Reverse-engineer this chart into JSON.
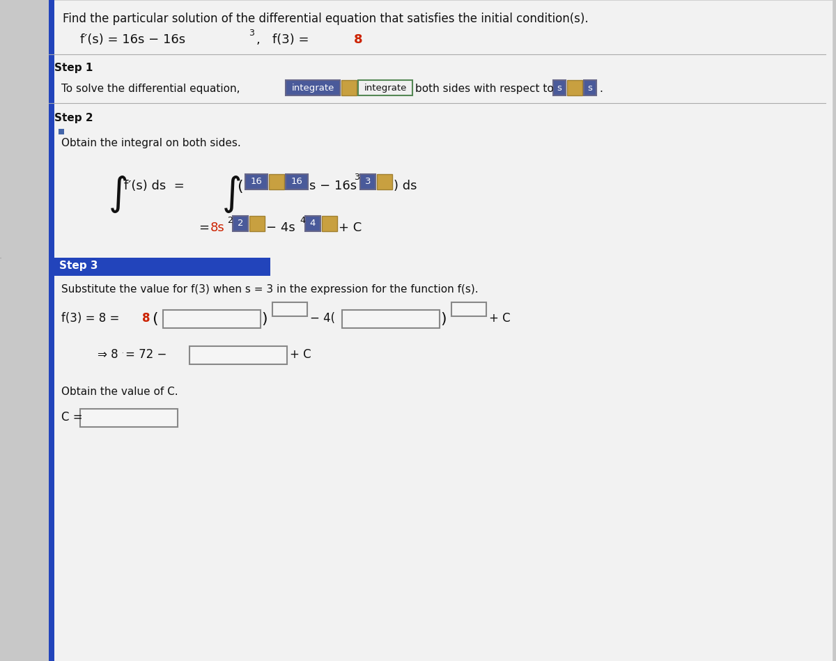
{
  "bg_color": "#c8c8c8",
  "panel_color": "#f0f0f0",
  "title_text": "Find the particular solution of the differential equation that satisfies the initial condition(s).",
  "step1_label": "Step 1",
  "step2_label": "Step 2",
  "step3_label": "Step 3",
  "step1_text": "To solve the differential equation,",
  "step1_after": "both sides with respect to",
  "step2_text": "Obtain the integral on both sides.",
  "step3_text": "Substitute the value for f(3) when s = 3 in the expression for the function f(s).",
  "obtain_text": "Obtain the value of C.",
  "step3_header_bg": "#2244bb",
  "dark_text": "#111111",
  "red_text": "#cc2200",
  "dark_box_color": "#4a5a9a",
  "dark_box_edge": "#666688",
  "green_box_color": "#3a7a3a",
  "green_box_edge": "#558855",
  "img_color": "#c8a040",
  "img_edge": "#a08030",
  "input_box_color": "#f5f5f5",
  "input_box_edge": "#888888",
  "sep_color": "#999999",
  "accent_color": "#2244bb"
}
